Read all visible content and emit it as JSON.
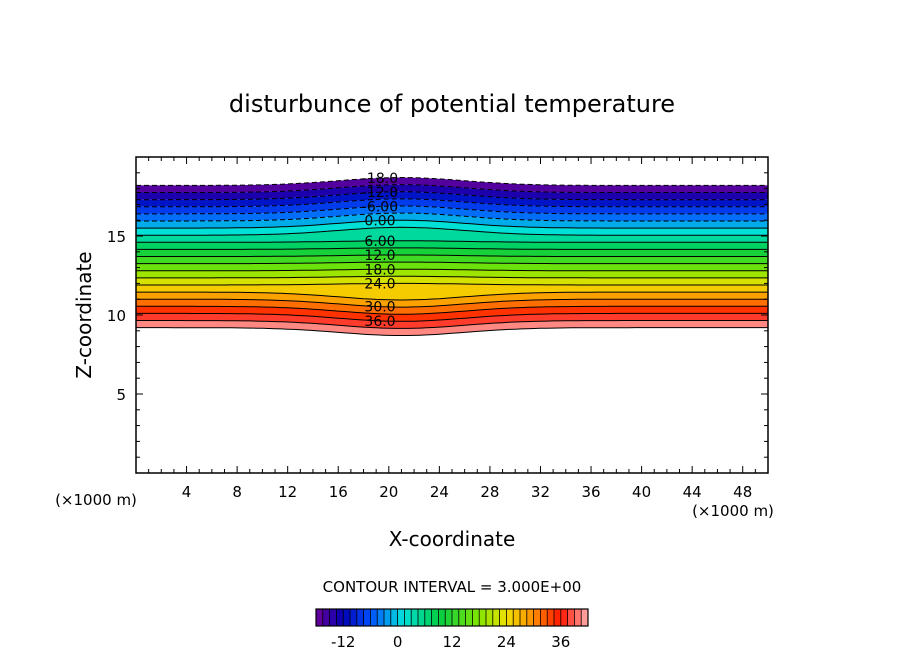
{
  "chart_data": {
    "type": "contour",
    "title": "disturbunce of potential temperature",
    "xlabel": "X-coordinate",
    "ylabel": "Z-coordinate",
    "x_unit": "(×1000 m)",
    "y_unit": "(×1000 m)",
    "xlim": [
      0,
      50
    ],
    "ylim": [
      0,
      20
    ],
    "x_ticks": [
      "4",
      "8",
      "12",
      "16",
      "20",
      "24",
      "28",
      "32",
      "36",
      "40",
      "44",
      "48"
    ],
    "y_ticks": [
      "5",
      "10",
      "15"
    ],
    "contour_interval_text": "CONTOUR INTERVAL = 3.000E+00",
    "contour_interval": 3,
    "min_level": -18,
    "max_level": 42,
    "layer_top": 18.2,
    "layer_bottom": 9.2,
    "bump_center_x": 21,
    "bump_amplitude": 0.5,
    "contour_labels": [
      {
        "value": -18,
        "text": "-18.0"
      },
      {
        "value": -12,
        "text": "-12.0"
      },
      {
        "value": -6,
        "text": "-6.00"
      },
      {
        "value": 0,
        "text": "0.00"
      },
      {
        "value": 6,
        "text": "6.00"
      },
      {
        "value": 12,
        "text": "12.0"
      },
      {
        "value": 18,
        "text": "18.0"
      },
      {
        "value": 24,
        "text": "24.0"
      },
      {
        "value": 30,
        "text": "30.0"
      },
      {
        "value": 36,
        "text": "36.0"
      }
    ],
    "colorbar_ticks": [
      "-12",
      "0",
      "12",
      "24",
      "36"
    ],
    "colorbar_tick_values": [
      -12,
      0,
      12,
      24,
      36
    ],
    "grid": false
  }
}
